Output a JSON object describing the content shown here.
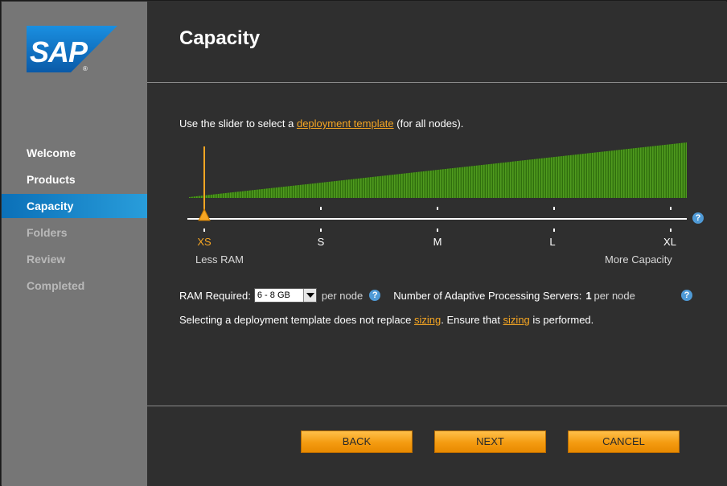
{
  "app": {
    "logo_text": "SAP",
    "logo_registered": "®",
    "brand_color": "#1670c0",
    "accent_color": "#f6a623",
    "slider_fill_color": "#3c8a12"
  },
  "sidebar": {
    "items": [
      {
        "label": "Welcome",
        "state": "done"
      },
      {
        "label": "Products",
        "state": "done"
      },
      {
        "label": "Capacity",
        "state": "active"
      },
      {
        "label": "Folders",
        "state": "pending"
      },
      {
        "label": "Review",
        "state": "pending"
      },
      {
        "label": "Completed",
        "state": "pending"
      }
    ]
  },
  "page": {
    "title": "Capacity",
    "instruction_prefix": "Use the slider to select a ",
    "instruction_link": "deployment template",
    "instruction_suffix": " (for all nodes)."
  },
  "slider": {
    "ticks": [
      "XS",
      "S",
      "M",
      "L",
      "XL"
    ],
    "selected_index": 0,
    "left_label": "Less RAM",
    "right_label": "More Capacity",
    "help_icon": "question-icon",
    "help_text": "?"
  },
  "ram": {
    "label": "RAM Required:",
    "selected": "6 - 8 GB",
    "per_node": "per node",
    "help_text": "?",
    "aps_label": "Number of Adaptive Processing Servers:",
    "aps_value": "1",
    "aps_per_node": "per node"
  },
  "note": {
    "prefix": "Selecting a deployment template does not replace ",
    "link1": "sizing",
    "middle": ". Ensure that ",
    "link2": "sizing",
    "suffix": " is performed."
  },
  "buttons": {
    "back": "BACK",
    "next": "NEXT",
    "cancel": "CANCEL"
  }
}
